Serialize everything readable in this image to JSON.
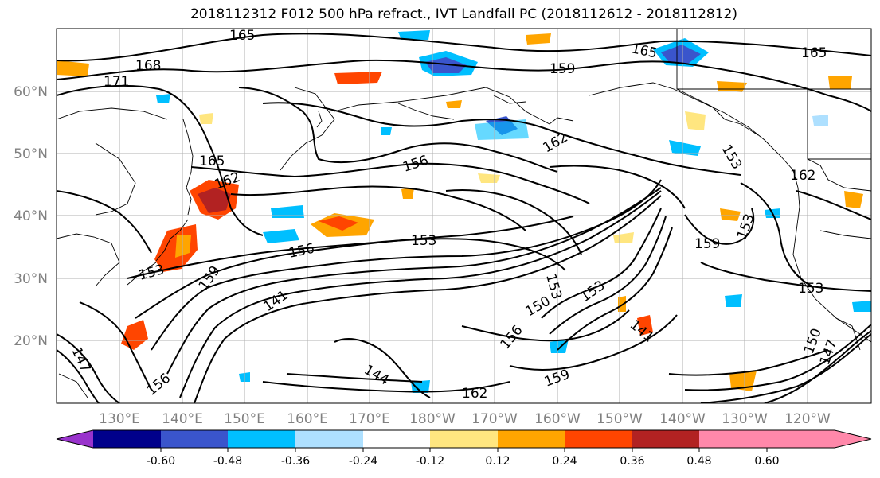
{
  "title": "2018112312 F012 500 hPa refract., IVT Landfall PC (2018112612 - 2018112812)",
  "map": {
    "lat_labels": [
      "60°N",
      "50°N",
      "40°N",
      "30°N",
      "20°N"
    ],
    "lon_labels": [
      "130°E",
      "140°E",
      "150°E",
      "160°E",
      "170°E",
      "180°W",
      "170°W",
      "160°W",
      "150°W",
      "140°W",
      "130°W",
      "120°W"
    ],
    "contour_labels": [
      "165",
      "168",
      "171",
      "159",
      "165",
      "165",
      "162",
      "165",
      "156",
      "162",
      "153",
      "156",
      "153",
      "153",
      "159",
      "153",
      "162",
      "153",
      "159",
      "141",
      "150",
      "153",
      "147",
      "153",
      "141",
      "144",
      "156",
      "156",
      "159",
      "162",
      "150",
      "147"
    ],
    "axis_label_color": "#808080"
  },
  "colorbar": {
    "tick_labels": [
      "-0.60",
      "-0.48",
      "-0.36",
      "-0.24",
      "-0.12",
      "0.12",
      "0.24",
      "0.36",
      "0.48",
      "0.60"
    ],
    "colors": [
      "#9933cc",
      "#00008b",
      "#3a55cc",
      "#00bfff",
      "#aee0ff",
      "#ffffff",
      "#ffe680",
      "#ffa500",
      "#ff4500",
      "#b22222",
      "#ff88aa"
    ]
  }
}
